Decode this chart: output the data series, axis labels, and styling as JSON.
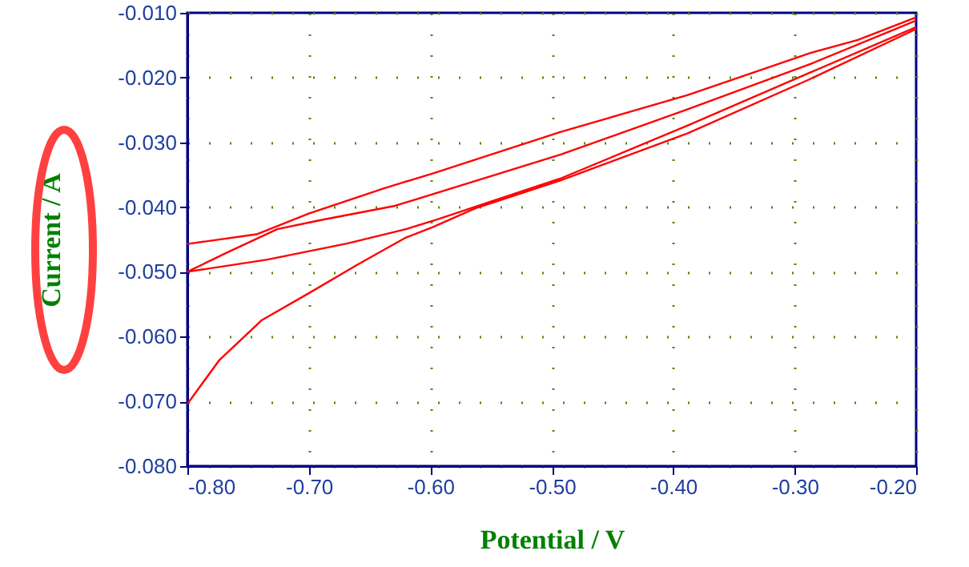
{
  "chart_data": {
    "type": "line",
    "xlabel": "Potential / V",
    "ylabel": "Current / A",
    "xlim": [
      -0.8,
      -0.2
    ],
    "ylim": [
      -0.08,
      -0.01
    ],
    "xticks": [
      {
        "value": -0.8,
        "label": "-0.80"
      },
      {
        "value": -0.7,
        "label": "-0.70"
      },
      {
        "value": -0.6,
        "label": "-0.60"
      },
      {
        "value": -0.5,
        "label": "-0.50"
      },
      {
        "value": -0.4,
        "label": "-0.40"
      },
      {
        "value": -0.3,
        "label": "-0.30"
      },
      {
        "value": -0.2,
        "label": "-0.20"
      }
    ],
    "yticks": [
      {
        "value": -0.08,
        "label": "-0.080"
      },
      {
        "value": -0.07,
        "label": "-0.070"
      },
      {
        "value": -0.06,
        "label": "-0.060"
      },
      {
        "value": -0.05,
        "label": "-0.050"
      },
      {
        "value": -0.04,
        "label": "-0.040"
      },
      {
        "value": -0.03,
        "label": "-0.030"
      },
      {
        "value": -0.02,
        "label": "-0.020"
      },
      {
        "value": -0.01,
        "label": "-0.010"
      }
    ],
    "grid": true,
    "marker": "none",
    "line_style": "solid",
    "series": [
      {
        "color": "#ff0000",
        "x": [
          -0.8,
          -0.774,
          -0.739,
          -0.7,
          -0.66,
          -0.62,
          -0.598,
          -0.563,
          -0.493,
          -0.388,
          -0.287,
          -0.2
        ],
        "values": [
          -0.0704,
          -0.0637,
          -0.0575,
          -0.0533,
          -0.0489,
          -0.0447,
          -0.0431,
          -0.0402,
          -0.0359,
          -0.0286,
          -0.0202,
          -0.0125
        ]
      },
      {
        "color": "#ff0000",
        "x": [
          -0.8,
          -0.743,
          -0.7,
          -0.638,
          -0.598,
          -0.493,
          -0.388,
          -0.287,
          -0.248,
          -0.2
        ],
        "values": [
          -0.0457,
          -0.0442,
          -0.041,
          -0.0371,
          -0.0348,
          -0.0284,
          -0.0227,
          -0.0162,
          -0.0142,
          -0.0107
        ]
      },
      {
        "color": "#ff0000",
        "x": [
          -0.8,
          -0.766,
          -0.726,
          -0.69,
          -0.629,
          -0.493,
          -0.388,
          -0.287,
          -0.2
        ],
        "values": [
          -0.05,
          -0.0469,
          -0.0434,
          -0.042,
          -0.0398,
          -0.0319,
          -0.0249,
          -0.0179,
          -0.0112
        ]
      },
      {
        "color": "#ff0000",
        "x": [
          -0.8,
          -0.734,
          -0.668,
          -0.62,
          -0.594,
          -0.559,
          -0.493,
          -0.388,
          -0.287,
          -0.2
        ],
        "values": [
          -0.05,
          -0.0481,
          -0.0456,
          -0.0434,
          -0.0419,
          -0.0397,
          -0.0356,
          -0.0274,
          -0.0192,
          -0.0122
        ]
      }
    ]
  }
}
